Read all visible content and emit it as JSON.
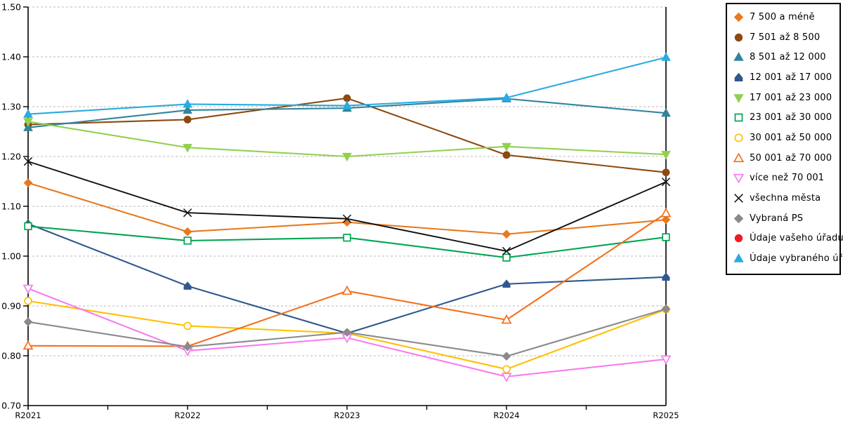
{
  "chart_data": {
    "type": "line",
    "title": "",
    "xlabel": "",
    "ylabel": "",
    "x": [
      "R2021",
      "R2022",
      "R2023",
      "R2024",
      "R2025"
    ],
    "ylim": [
      0.7,
      1.5
    ],
    "y_tick_step": 0.1,
    "y_tick_labels": [
      "0.70",
      "0.80",
      "0.90",
      "1.00",
      "1.10",
      "1.20",
      "1.30",
      "1.40",
      "1.50"
    ],
    "grid": "horizontal-dashed",
    "grid_color": "#b8b8b8",
    "axis_color": "#000000",
    "legend_position": "right-outside",
    "series": [
      {
        "name": "7 500 a méně",
        "color": "#E8791E",
        "marker": "diamond",
        "fill": "filled",
        "values": [
          1.147,
          1.049,
          1.068,
          1.044,
          1.073
        ]
      },
      {
        "name": "7 501 až 8 500",
        "color": "#8C4A10",
        "marker": "circle",
        "fill": "filled",
        "values": [
          1.264,
          1.274,
          1.317,
          1.203,
          1.168
        ]
      },
      {
        "name": "8 501 až 12 000",
        "color": "#31859C",
        "marker": "triangle-up",
        "fill": "filled",
        "values": [
          1.258,
          1.293,
          1.297,
          1.316,
          1.287
        ]
      },
      {
        "name": "12 001 až 17 000",
        "color": "#30588C",
        "marker": "pentagon",
        "fill": "filled",
        "values": [
          1.065,
          0.94,
          0.845,
          0.944,
          0.958
        ]
      },
      {
        "name": "17 001 až 23 000",
        "color": "#92D050",
        "marker": "triangle-down",
        "fill": "filled",
        "values": [
          1.27,
          1.218,
          1.2,
          1.22,
          1.204
        ]
      },
      {
        "name": "23 001 až 30 000",
        "color": "#00A551",
        "marker": "square",
        "fill": "open",
        "values": [
          1.06,
          1.031,
          1.037,
          0.997,
          1.038
        ]
      },
      {
        "name": "30 001 až 50 000",
        "color": "#FFC000",
        "marker": "circle",
        "fill": "open",
        "values": [
          0.91,
          0.86,
          0.845,
          0.773,
          0.893
        ]
      },
      {
        "name": "50 001 až 70 000",
        "color": "#F4701D",
        "marker": "triangle-up",
        "fill": "open",
        "values": [
          0.82,
          0.819,
          0.93,
          0.872,
          1.086
        ]
      },
      {
        "name": "více než 70 001",
        "color": "#F87CF0",
        "marker": "triangle-down",
        "fill": "open",
        "values": [
          0.935,
          0.81,
          0.836,
          0.758,
          0.793
        ]
      },
      {
        "name": "všechna města",
        "color": "#111111",
        "marker": "x-cross",
        "fill": "open",
        "values": [
          1.19,
          1.087,
          1.075,
          1.01,
          1.149
        ]
      },
      {
        "name": "Vybraná PS",
        "color": "#8A8A8A",
        "marker": "diamond",
        "fill": "filled",
        "values": [
          0.868,
          0.818,
          0.847,
          0.799,
          0.894
        ]
      },
      {
        "name": "Údaje vašeho úřadu",
        "color": "#ED1C24",
        "marker": "circle",
        "fill": "filled",
        "values": []
      },
      {
        "name": "Údaje vybraného úřadu",
        "color": "#29ABE2",
        "marker": "triangle-up",
        "fill": "filled",
        "values": [
          1.285,
          1.305,
          1.302,
          1.318,
          1.399
        ]
      }
    ]
  }
}
